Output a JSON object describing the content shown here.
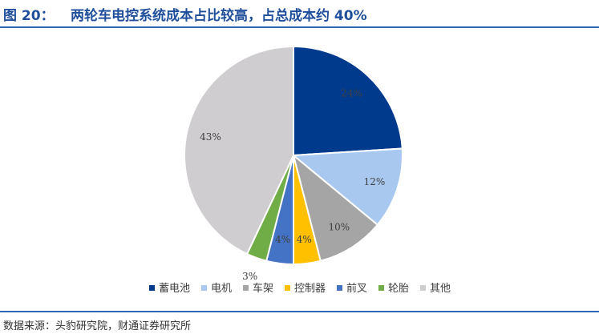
{
  "header": {
    "figure_no": "图 20：",
    "title": "两轮车电控系统成本占比较高，占总成本约 40%"
  },
  "footer": {
    "source": "数据来源：头豹研究院，财通证券研究所"
  },
  "chart_data": {
    "type": "pie",
    "title": "",
    "start_angle": 0,
    "direction": "clockwise",
    "slices": [
      {
        "name": "蓄电池",
        "value": 24,
        "label": "24%",
        "color": "#003a8c"
      },
      {
        "name": "电机",
        "value": 12,
        "label": "12%",
        "color": "#a9c8f0"
      },
      {
        "name": "车架",
        "value": 10,
        "label": "10%",
        "color": "#a5a5a5"
      },
      {
        "name": "控制器",
        "value": 4,
        "label": "4%",
        "color": "#ffc000"
      },
      {
        "name": "前叉",
        "value": 4,
        "label": "4%",
        "color": "#4472c4"
      },
      {
        "name": "轮胎",
        "value": 3,
        "label": "3%",
        "color": "#70ad47"
      },
      {
        "name": "其他",
        "value": 43,
        "label": "43%",
        "color": "#cfcdd0"
      }
    ],
    "legend_position": "bottom"
  }
}
